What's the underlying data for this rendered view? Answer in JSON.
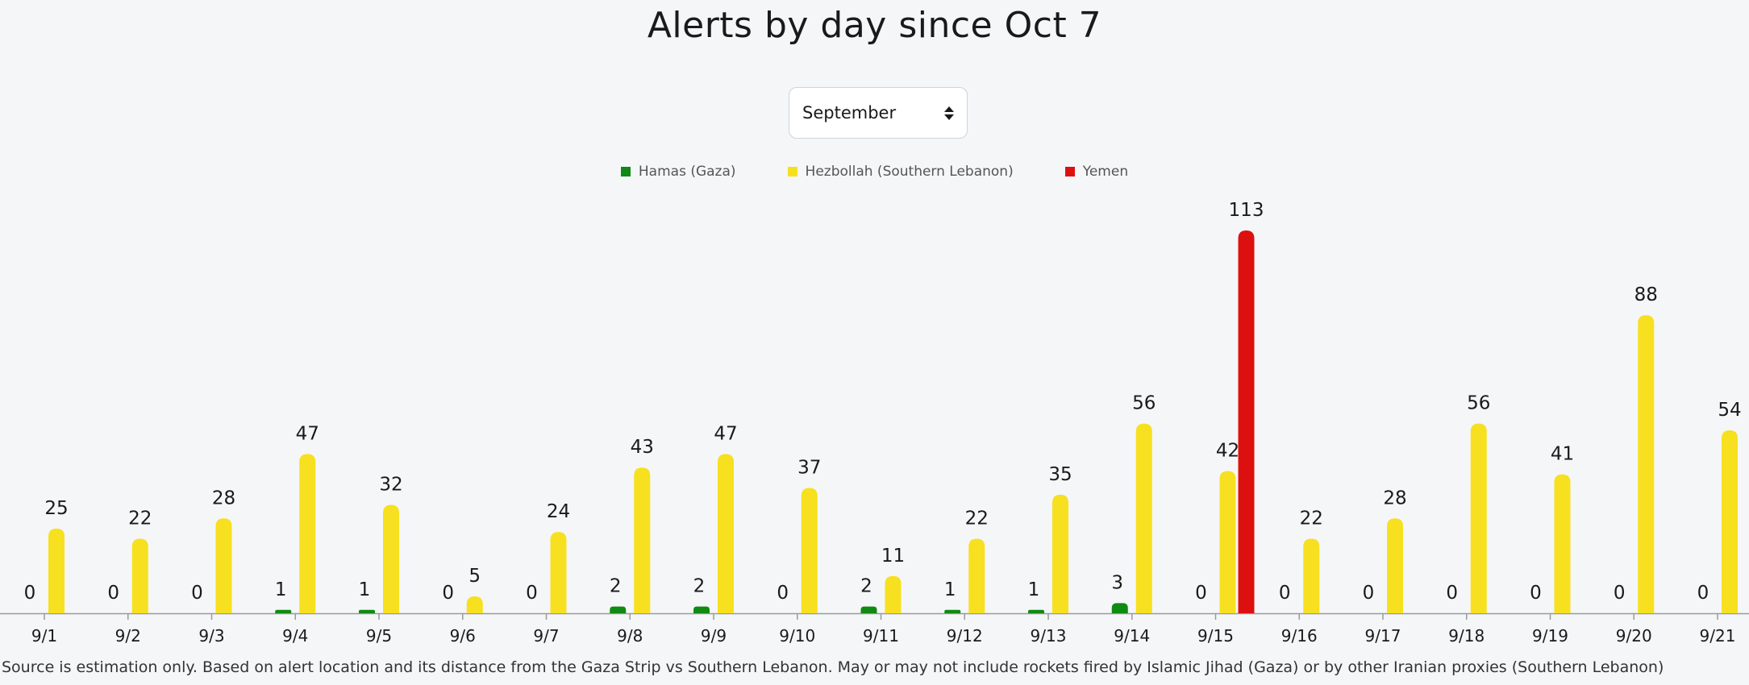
{
  "title": "Alerts by day since Oct 7",
  "month_select": {
    "value": "September"
  },
  "footnote": "Source is estimation only. Based on alert location and its distance from the Gaza Strip vs Southern Lebanon. May or may not include rockets fired by Islamic Jihad (Gaza) or by other Iranian proxies (Southern Lebanon)",
  "chart_data": {
    "type": "bar",
    "title": "Alerts by day since Oct 7",
    "xlabel": "",
    "ylabel": "",
    "ylim": [
      0,
      113
    ],
    "legend_position": "top-center",
    "grid": false,
    "categories": [
      "9/1",
      "9/2",
      "9/3",
      "9/4",
      "9/5",
      "9/6",
      "9/7",
      "9/8",
      "9/9",
      "9/10",
      "9/11",
      "9/12",
      "9/13",
      "9/14",
      "9/15",
      "9/16",
      "9/17",
      "9/18",
      "9/19",
      "9/20",
      "9/21"
    ],
    "series": [
      {
        "name": "Hamas (Gaza)",
        "color": "#0f8a12",
        "values": [
          0,
          0,
          0,
          1,
          1,
          0,
          0,
          2,
          2,
          0,
          2,
          1,
          1,
          3,
          0,
          0,
          0,
          0,
          0,
          0,
          0
        ],
        "labels": [
          "0",
          "0",
          "0",
          "1",
          "1",
          "0",
          "0",
          "2",
          "2",
          "0",
          "2",
          "1",
          "1",
          "3",
          "0",
          "0",
          "0",
          "0",
          "0",
          "0",
          "0"
        ]
      },
      {
        "name": "Hezbollah (Southern Lebanon)",
        "color": "#f7e01f",
        "values": [
          25,
          22,
          28,
          47,
          32,
          5,
          24,
          43,
          47,
          37,
          11,
          22,
          35,
          56,
          42,
          22,
          28,
          56,
          41,
          88,
          54
        ],
        "labels": [
          "25",
          "22",
          "28",
          "47",
          "32",
          "5",
          "24",
          "43",
          "47",
          "37",
          "11",
          "22",
          "35",
          "56",
          "42",
          "22",
          "28",
          "56",
          "41",
          "88",
          "54"
        ]
      },
      {
        "name": "Yemen",
        "color": "#dd1010",
        "values": [
          0,
          0,
          0,
          0,
          0,
          0,
          0,
          0,
          0,
          0,
          0,
          0,
          0,
          0,
          113,
          0,
          0,
          0,
          0,
          0,
          0
        ],
        "labels": [
          "",
          "",
          "",
          "",
          "",
          "",
          "",
          "",
          "",
          "",
          "",
          "",
          "",
          "",
          "113",
          "",
          "",
          "",
          "",
          "",
          ""
        ]
      }
    ]
  }
}
